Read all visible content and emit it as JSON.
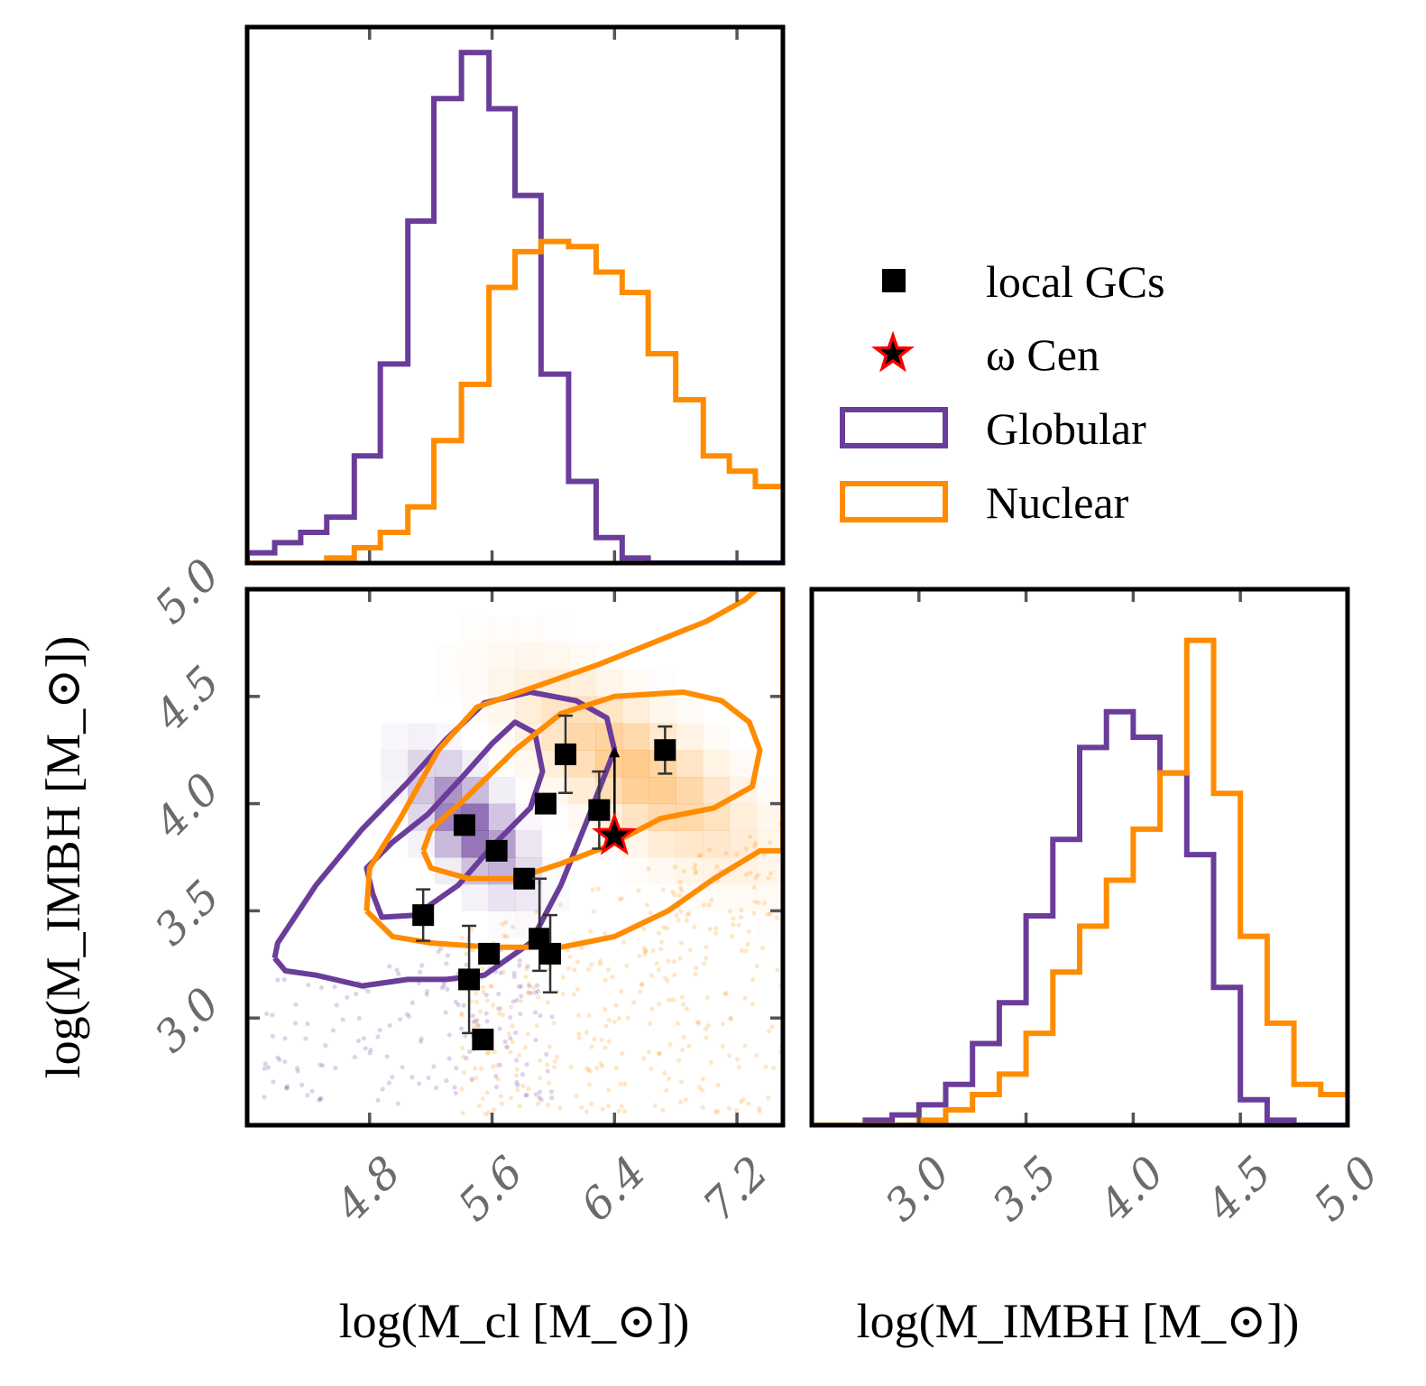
{
  "colors": {
    "globular": "#6a3d9a",
    "nuclear": "#ff8c00",
    "local_gc": "#000000",
    "omega_cen_edge": "#ff0000",
    "omega_cen_face": "#000000"
  },
  "legend": {
    "entries": [
      {
        "label": "local GCs",
        "marker": "square",
        "color": "#000000"
      },
      {
        "label": "ω Cen",
        "marker": "star",
        "color": "#ff0000"
      },
      {
        "label": "Globular",
        "marker": "box",
        "color": "#6a3d9a"
      },
      {
        "label": "Nuclear",
        "marker": "box",
        "color": "#ff8c00"
      }
    ]
  },
  "axis_labels": {
    "x_cluster": "log(M_cl [M_⊙])",
    "x_imbh": "log(M_IMBH [M_⊙])",
    "y_imbh": "log(M_IMBH [M_⊙])"
  },
  "chart_data": [
    {
      "id": "top-histogram",
      "type": "step-histogram",
      "xlabel": "",
      "ylabel": "",
      "xlim": [
        4.0,
        7.5
      ],
      "ylim": [
        0,
        1.05
      ],
      "xticks": [
        4.8,
        5.6,
        6.4,
        7.2
      ],
      "bin_edges": [
        4.0,
        4.18,
        4.35,
        4.52,
        4.7,
        4.87,
        5.05,
        5.22,
        5.4,
        5.58,
        5.75,
        5.92,
        6.1,
        6.28,
        6.45,
        6.62,
        6.8,
        6.98,
        7.15,
        7.32,
        7.5
      ],
      "series": [
        {
          "name": "Globular",
          "color": "#6a3d9a",
          "values": [
            0.02,
            0.04,
            0.06,
            0.09,
            0.21,
            0.39,
            0.67,
            0.91,
            1.0,
            0.89,
            0.72,
            0.37,
            0.16,
            0.05,
            0.01,
            0.0,
            0.0,
            0.0,
            0.0,
            0.0
          ]
        },
        {
          "name": "Nuclear",
          "color": "#ff8c00",
          "values": [
            0.0,
            0.0,
            0.0,
            0.01,
            0.03,
            0.06,
            0.11,
            0.24,
            0.35,
            0.54,
            0.61,
            0.63,
            0.62,
            0.57,
            0.53,
            0.41,
            0.32,
            0.21,
            0.18,
            0.15
          ]
        }
      ]
    },
    {
      "id": "joint-scatter",
      "type": "scatter",
      "xlabel": "log(M_cl [M_⊙])",
      "ylabel": "log(M_IMBH [M_⊙])",
      "xlim": [
        4.0,
        7.5
      ],
      "ylim": [
        2.5,
        5.0
      ],
      "xticks": [
        4.8,
        5.6,
        6.4,
        7.2
      ],
      "yticks": [
        3.0,
        3.5,
        4.0,
        4.5,
        5.0
      ],
      "local_gcs": [
        {
          "x": 5.15,
          "y": 3.48,
          "yerr": [
            0.12,
            0.12
          ]
        },
        {
          "x": 5.42,
          "y": 3.9,
          "yerr": [
            0.0,
            0.0
          ]
        },
        {
          "x": 5.63,
          "y": 3.78,
          "yerr": [
            0.0,
            0.0
          ]
        },
        {
          "x": 5.95,
          "y": 4.0,
          "yerr": [
            0.0,
            0.0
          ]
        },
        {
          "x": 6.08,
          "y": 4.23,
          "yerr": [
            0.18,
            0.18
          ]
        },
        {
          "x": 6.3,
          "y": 3.97,
          "yerr": [
            0.18,
            0.18
          ]
        },
        {
          "x": 5.81,
          "y": 3.65,
          "yerr": [
            0.0,
            0.0
          ]
        },
        {
          "x": 5.91,
          "y": 3.37,
          "yerr": [
            0.15,
            0.28
          ]
        },
        {
          "x": 5.98,
          "y": 3.3,
          "yerr": [
            0.18,
            0.18
          ]
        },
        {
          "x": 5.58,
          "y": 3.3,
          "yerr": [
            0.0,
            0.0
          ]
        },
        {
          "x": 5.45,
          "y": 3.18,
          "yerr": [
            0.25,
            0.25
          ]
        },
        {
          "x": 5.54,
          "y": 2.9,
          "yerr": [
            0.0,
            0.0
          ]
        },
        {
          "x": 6.73,
          "y": 4.25,
          "yerr": [
            0.11,
            0.11
          ]
        }
      ],
      "omega_cen": {
        "x": 6.4,
        "y": 3.85,
        "lower_limit_arrow_to": 4.25
      },
      "contours": [
        {
          "name": "Globular",
          "level": "inner",
          "points": [
            [
              4.82,
              3.58
            ],
            [
              4.78,
              3.7
            ],
            [
              4.95,
              3.82
            ],
            [
              5.18,
              3.95
            ],
            [
              5.4,
              4.12
            ],
            [
              5.6,
              4.28
            ],
            [
              5.75,
              4.38
            ],
            [
              5.88,
              4.33
            ],
            [
              5.93,
              4.15
            ],
            [
              5.85,
              3.98
            ],
            [
              5.6,
              3.8
            ],
            [
              5.38,
              3.62
            ],
            [
              5.1,
              3.48
            ],
            [
              4.88,
              3.47
            ],
            [
              4.82,
              3.58
            ]
          ]
        },
        {
          "name": "Globular",
          "level": "outer",
          "points": [
            [
              4.18,
              3.28
            ],
            [
              4.2,
              3.35
            ],
            [
              4.45,
              3.62
            ],
            [
              4.75,
              3.88
            ],
            [
              5.05,
              4.1
            ],
            [
              5.3,
              4.3
            ],
            [
              5.55,
              4.47
            ],
            [
              5.85,
              4.52
            ],
            [
              6.15,
              4.48
            ],
            [
              6.35,
              4.4
            ],
            [
              6.4,
              4.25
            ],
            [
              6.22,
              3.92
            ],
            [
              6.05,
              3.62
            ],
            [
              5.85,
              3.35
            ],
            [
              5.55,
              3.2
            ],
            [
              5.3,
              3.18
            ],
            [
              5.05,
              3.18
            ],
            [
              4.75,
              3.15
            ],
            [
              4.45,
              3.2
            ],
            [
              4.25,
              3.22
            ],
            [
              4.18,
              3.28
            ]
          ]
        },
        {
          "name": "Nuclear",
          "level": "inner",
          "points": [
            [
              5.15,
              3.78
            ],
            [
              5.2,
              3.88
            ],
            [
              5.42,
              4.02
            ],
            [
              5.75,
              4.25
            ],
            [
              6.05,
              4.42
            ],
            [
              6.4,
              4.5
            ],
            [
              6.85,
              4.52
            ],
            [
              7.1,
              4.48
            ],
            [
              7.28,
              4.38
            ],
            [
              7.35,
              4.25
            ],
            [
              7.3,
              4.08
            ],
            [
              7.05,
              3.98
            ],
            [
              6.7,
              3.93
            ],
            [
              6.35,
              3.8
            ],
            [
              6.05,
              3.72
            ],
            [
              5.75,
              3.65
            ],
            [
              5.45,
              3.65
            ],
            [
              5.2,
              3.7
            ],
            [
              5.15,
              3.78
            ]
          ]
        },
        {
          "name": "Nuclear",
          "level": "outer",
          "points": [
            [
              4.78,
              3.5
            ],
            [
              4.8,
              3.7
            ],
            [
              5.0,
              3.93
            ],
            [
              5.25,
              4.25
            ],
            [
              5.5,
              4.45
            ],
            [
              5.9,
              4.55
            ],
            [
              6.3,
              4.65
            ],
            [
              6.65,
              4.75
            ],
            [
              7.0,
              4.85
            ],
            [
              7.25,
              4.95
            ],
            [
              7.33,
              5.0
            ],
            [
              7.5,
              5.0
            ],
            [
              7.5,
              3.78
            ],
            [
              7.35,
              3.78
            ],
            [
              7.05,
              3.65
            ],
            [
              6.75,
              3.5
            ],
            [
              6.4,
              3.38
            ],
            [
              6.05,
              3.33
            ],
            [
              5.6,
              3.33
            ],
            [
              5.2,
              3.35
            ],
            [
              4.95,
              3.38
            ],
            [
              4.78,
              3.5
            ]
          ]
        }
      ]
    },
    {
      "id": "right-histogram",
      "type": "step-histogram",
      "xlabel": "log(M_IMBH [M_⊙])",
      "ylabel": "",
      "xlim": [
        2.5,
        5.0
      ],
      "ylim": [
        0,
        1.05
      ],
      "xticks": [
        3.0,
        3.5,
        4.0,
        4.5,
        5.0
      ],
      "bin_edges": [
        2.5,
        2.625,
        2.75,
        2.875,
        3.0,
        3.125,
        3.25,
        3.375,
        3.5,
        3.625,
        3.75,
        3.875,
        4.0,
        4.125,
        4.25,
        4.375,
        4.5,
        4.625,
        4.75,
        4.875,
        5.0
      ],
      "series": [
        {
          "name": "Globular",
          "color": "#6a3d9a",
          "values": [
            0.0,
            0.0,
            0.01,
            0.02,
            0.04,
            0.08,
            0.16,
            0.24,
            0.41,
            0.56,
            0.74,
            0.81,
            0.76,
            0.69,
            0.53,
            0.27,
            0.05,
            0.01,
            0.0,
            0.0
          ]
        },
        {
          "name": "Nuclear",
          "color": "#ff8c00",
          "values": [
            0.0,
            0.0,
            0.0,
            0.0,
            0.01,
            0.03,
            0.06,
            0.1,
            0.18,
            0.3,
            0.39,
            0.48,
            0.58,
            0.69,
            0.95,
            0.65,
            0.37,
            0.2,
            0.08,
            0.06
          ]
        }
      ]
    }
  ]
}
